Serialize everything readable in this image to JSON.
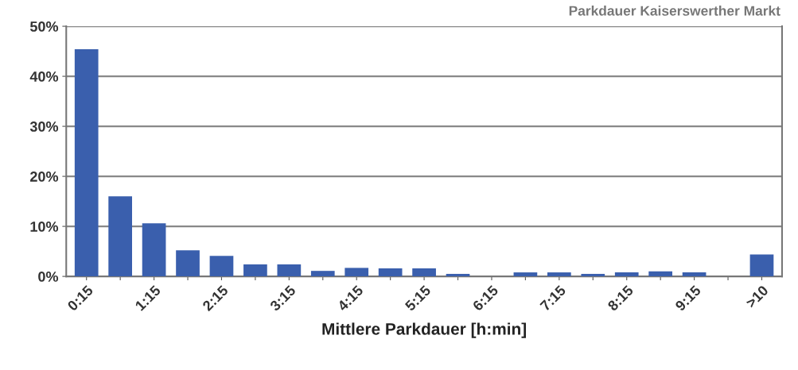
{
  "chart_data": {
    "type": "bar",
    "title": "Parkdauer Kaiserswerther Markt",
    "xlabel": "Mittlere Parkdauer [h:min]",
    "categories": [
      "0:15",
      null,
      "1:15",
      null,
      "2:15",
      null,
      "3:15",
      null,
      "4:15",
      null,
      "5:15",
      null,
      "6:15",
      null,
      "7:15",
      null,
      "8:15",
      null,
      "9:15",
      null,
      ">10"
    ],
    "values": [
      45.4,
      16.0,
      10.6,
      5.2,
      4.1,
      2.4,
      2.4,
      1.1,
      1.7,
      1.6,
      1.6,
      0.5,
      0,
      0.8,
      0.8,
      0.5,
      0.8,
      1.0,
      0.8,
      0,
      4.4
    ],
    "color": "#3a5fad",
    "ylim": [
      0,
      50
    ],
    "yticks": [
      {
        "value": 0,
        "label": "0%"
      },
      {
        "value": 10,
        "label": "10%"
      },
      {
        "value": 20,
        "label": "20%"
      },
      {
        "value": 30,
        "label": "30%"
      },
      {
        "value": 40,
        "label": "40%"
      },
      {
        "value": 50,
        "label": "50%"
      }
    ],
    "grid": "y",
    "legend": false
  }
}
